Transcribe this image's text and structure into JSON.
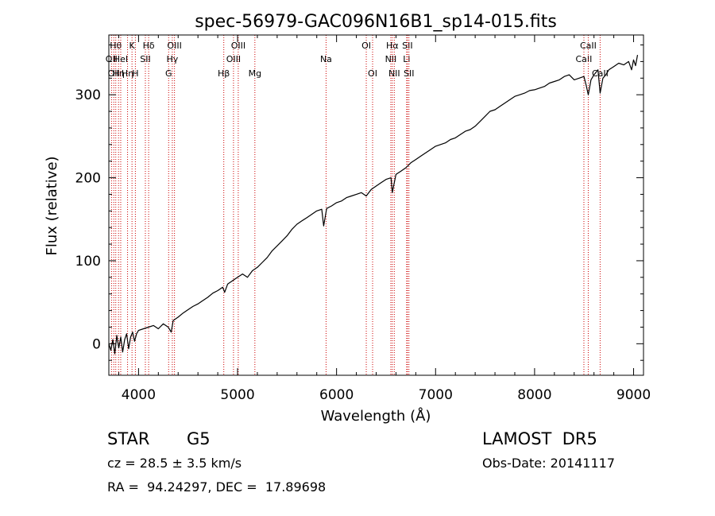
{
  "chart_data": {
    "type": "line",
    "title": "spec-56979-GAC096N16B1_sp14-015.fits",
    "xlabel": "Wavelength (Å)",
    "ylabel": "Flux (relative)",
    "xlim": [
      3700,
      9100
    ],
    "ylim": [
      -38,
      372
    ],
    "x_ticks": [
      4000,
      5000,
      6000,
      7000,
      8000,
      9000
    ],
    "y_ticks": [
      0,
      100,
      200,
      300
    ],
    "x_tick_labels": [
      "4000",
      "5000",
      "6000",
      "7000",
      "8000",
      "9000"
    ],
    "y_tick_labels": [
      "0",
      "100",
      "200",
      "300"
    ],
    "grid": false,
    "line_color": "#000000",
    "marker_color": "#cc0000",
    "series": [
      {
        "x": [
          3700,
          3720,
          3740,
          3760,
          3780,
          3800,
          3820,
          3840,
          3860,
          3880,
          3900,
          3920,
          3940,
          3960,
          3980,
          4000,
          4050,
          4100,
          4150,
          4200,
          4250,
          4300,
          4330,
          4350,
          4400,
          4450,
          4500,
          4550,
          4600,
          4650,
          4700,
          4750,
          4800,
          4850,
          4870,
          4900,
          4950,
          5000,
          5050,
          5100,
          5150,
          5200,
          5250,
          5300,
          5350,
          5400,
          5450,
          5500,
          5550,
          5600,
          5650,
          5700,
          5750,
          5800,
          5850,
          5870,
          5900,
          5950,
          6000,
          6050,
          6100,
          6150,
          6200,
          6250,
          6300,
          6350,
          6400,
          6450,
          6500,
          6550,
          6563,
          6600,
          6650,
          6700,
          6750,
          6800,
          6850,
          6900,
          6950,
          7000,
          7050,
          7100,
          7150,
          7200,
          7250,
          7300,
          7350,
          7400,
          7450,
          7500,
          7550,
          7600,
          7650,
          7700,
          7750,
          7800,
          7850,
          7900,
          7950,
          8000,
          8050,
          8100,
          8150,
          8200,
          8250,
          8300,
          8350,
          8400,
          8450,
          8498,
          8520,
          8542,
          8570,
          8600,
          8640,
          8662,
          8690,
          8720,
          8750,
          8800,
          8850,
          8900,
          8950,
          8980,
          9000,
          9020,
          9040
        ],
        "y": [
          0,
          -8,
          5,
          -12,
          10,
          -5,
          8,
          -10,
          5,
          12,
          -6,
          8,
          14,
          3,
          12,
          16,
          18,
          20,
          22,
          18,
          24,
          20,
          14,
          28,
          32,
          37,
          41,
          45,
          48,
          52,
          56,
          61,
          64,
          68,
          62,
          72,
          76,
          80,
          84,
          80,
          88,
          92,
          98,
          104,
          112,
          118,
          124,
          130,
          138,
          144,
          148,
          152,
          156,
          160,
          162,
          142,
          163,
          166,
          170,
          172,
          176,
          178,
          180,
          182,
          178,
          186,
          190,
          194,
          198,
          200,
          182,
          204,
          208,
          212,
          218,
          222,
          226,
          230,
          234,
          238,
          240,
          242,
          246,
          248,
          252,
          256,
          258,
          262,
          268,
          274,
          280,
          282,
          286,
          290,
          294,
          298,
          300,
          302,
          305,
          306,
          308,
          310,
          314,
          316,
          318,
          322,
          324,
          318,
          320,
          322,
          312,
          300,
          318,
          324,
          330,
          302,
          320,
          324,
          330,
          334,
          338,
          336,
          340,
          330,
          342,
          335,
          348
        ]
      }
    ],
    "line_markers": [
      {
        "wavelength": 3727,
        "label": "OII",
        "row": 1
      },
      {
        "wavelength": 3750,
        "label": "OII",
        "row": 2
      },
      {
        "wavelength": 3770,
        "label": "Hθ",
        "row": 0
      },
      {
        "wavelength": 3798,
        "label": "Hη",
        "row": 2
      },
      {
        "wavelength": 3820,
        "label": "HeI",
        "row": 1
      },
      {
        "wavelength": 3889,
        "label": "Hη",
        "row": 2
      },
      {
        "wavelength": 3934,
        "label": "K",
        "row": 0
      },
      {
        "wavelength": 3968,
        "label": "H",
        "row": 2
      },
      {
        "wavelength": 4069,
        "label": "SII",
        "row": 1
      },
      {
        "wavelength": 4102,
        "label": "Hδ",
        "row": 0
      },
      {
        "wavelength": 4304,
        "label": "G",
        "row": 2
      },
      {
        "wavelength": 4341,
        "label": "Hγ",
        "row": 1
      },
      {
        "wavelength": 4363,
        "label": "OIII",
        "row": 0
      },
      {
        "wavelength": 4861,
        "label": "Hβ",
        "row": 2
      },
      {
        "wavelength": 4959,
        "label": "OIII",
        "row": 1
      },
      {
        "wavelength": 5007,
        "label": "OIII",
        "row": 0
      },
      {
        "wavelength": 5175,
        "label": "Mg",
        "row": 2
      },
      {
        "wavelength": 5894,
        "label": "Na",
        "row": 1
      },
      {
        "wavelength": 6300,
        "label": "OI",
        "row": 0
      },
      {
        "wavelength": 6364,
        "label": "OI",
        "row": 2
      },
      {
        "wavelength": 6548,
        "label": "NII",
        "row": 1
      },
      {
        "wavelength": 6563,
        "label": "Hα",
        "row": 0
      },
      {
        "wavelength": 6583,
        "label": "NII",
        "row": 2
      },
      {
        "wavelength": 6708,
        "label": "Li",
        "row": 1
      },
      {
        "wavelength": 6716,
        "label": "SII",
        "row": 0
      },
      {
        "wavelength": 6731,
        "label": "SII",
        "row": 2
      },
      {
        "wavelength": 8498,
        "label": "CaII",
        "row": 1
      },
      {
        "wavelength": 8542,
        "label": "CaII",
        "row": 0
      },
      {
        "wavelength": 8662,
        "label": "CaII",
        "row": 2
      }
    ]
  },
  "info": {
    "object_type": "STAR",
    "subclass": "G5",
    "survey": "LAMOST  DR5",
    "redshift": "cz = 28.5 ± 3.5 km/s",
    "obs_date": "Obs-Date: 20141117",
    "coords": "RA =  94.24297, DEC =  17.89698"
  }
}
